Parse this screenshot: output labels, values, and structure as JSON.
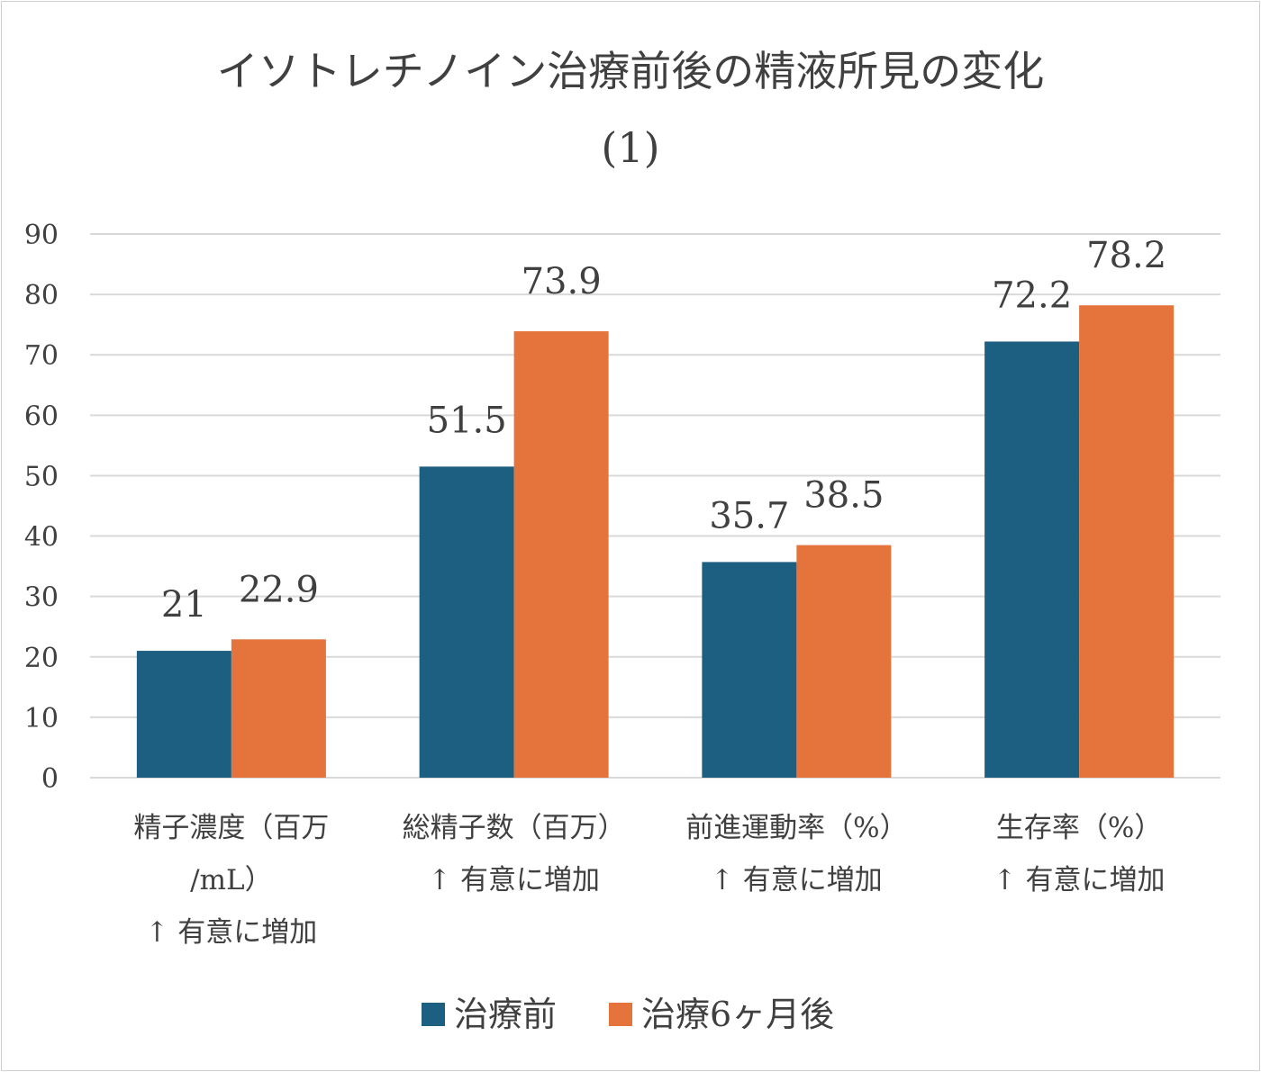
{
  "chart_data": {
    "type": "bar",
    "title": [
      "イソトレチノイン治療前後の精液所見の変化",
      "(1)"
    ],
    "categories": [
      [
        "精子濃度（百万",
        "/mL）",
        "↑ 有意に増加"
      ],
      [
        "総精子数（百万）",
        "↑ 有意に増加"
      ],
      [
        "前進運動率（%）",
        "↑ 有意に増加"
      ],
      [
        "生存率（%）",
        "↑ 有意に増加"
      ]
    ],
    "series": [
      {
        "name": "治療前",
        "color": "#1c5f80",
        "values": [
          21,
          51.5,
          35.7,
          72.2
        ],
        "labels": [
          "21",
          "51.5",
          "35.7",
          "72.2"
        ]
      },
      {
        "name": "治療6ヶ月後",
        "color": "#e5733c",
        "values": [
          22.9,
          73.9,
          38.5,
          78.2
        ],
        "labels": [
          "22.9",
          "73.9",
          "38.5",
          "78.2"
        ]
      }
    ],
    "ylim": [
      0,
      90
    ],
    "yticks": [
      "0",
      "10",
      "20",
      "30",
      "40",
      "50",
      "60",
      "70",
      "80",
      "90"
    ],
    "grid": true,
    "legend": "bottom",
    "xlabel": "",
    "ylabel": ""
  }
}
